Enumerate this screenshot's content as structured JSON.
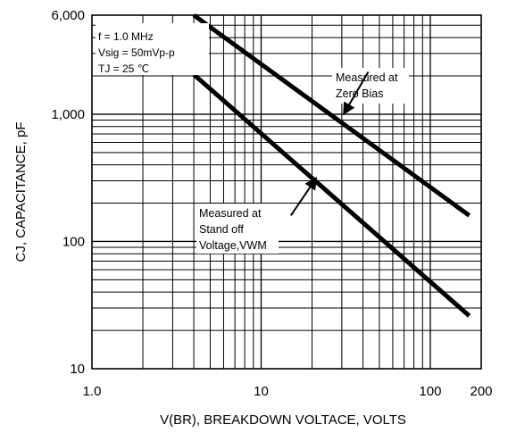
{
  "chart_data": {
    "type": "line",
    "title": "",
    "xlabel": "V(BR), BREAKDOWN VOLTACE, VOLTS",
    "ylabel": "CJ, CAPACITANCE, pF",
    "xscale": "log",
    "yscale": "log",
    "xlim": [
      1,
      200
    ],
    "ylim": [
      10,
      6000
    ],
    "x_ticks": [
      1,
      10,
      100,
      200
    ],
    "x_tick_labels": [
      "1.0",
      "10",
      "100",
      "200"
    ],
    "y_ticks": [
      10,
      100,
      1000,
      6000
    ],
    "y_tick_labels": [
      "10",
      "100",
      "1,000",
      "6,000"
    ],
    "grid": true,
    "conditions": [
      "f = 1.0 MHz",
      "Vsig = 50mVp-p",
      "TJ = 25 ℃"
    ],
    "series": [
      {
        "name": "Measured at Zero Bias",
        "label_lines": [
          "Measured at",
          "Zero Bias"
        ],
        "x": [
          4.0,
          170
        ],
        "y": [
          6000,
          160
        ],
        "color": "#000000"
      },
      {
        "name": "Measured at Stand off Voltage,VWM",
        "label_lines": [
          "Measured at",
          "Stand off",
          "Voltage,VWM"
        ],
        "x": [
          4.0,
          170
        ],
        "y": [
          2050,
          26
        ],
        "color": "#000000"
      }
    ],
    "arrows": [
      {
        "series": 0,
        "from": [
          43,
          2150
        ],
        "to": [
          31,
          1020
        ]
      },
      {
        "series": 1,
        "from": [
          15,
          160
        ],
        "to": [
          21,
          310
        ]
      }
    ]
  }
}
